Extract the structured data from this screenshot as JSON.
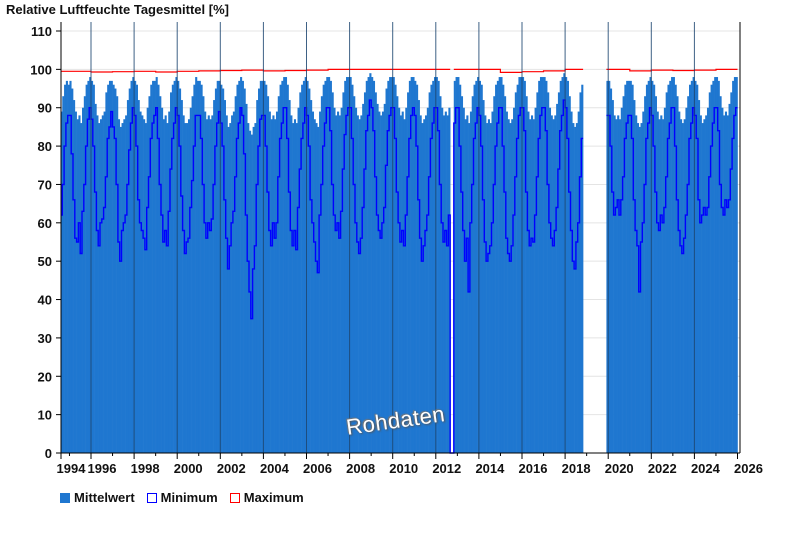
{
  "chart_data": {
    "type": "bar",
    "title": "Relative Luftfeuchte Tagesmittel [%]",
    "xlabel": "",
    "ylabel": "",
    "ylim": [
      0,
      110
    ],
    "yticks": [
      "0",
      "10",
      "20",
      "30",
      "40",
      "50",
      "60",
      "70",
      "80",
      "90",
      "100",
      "110"
    ],
    "xticks": [
      "1994",
      "1996",
      "1998",
      "2000",
      "2002",
      "2004",
      "2006",
      "2008",
      "2010",
      "2012",
      "2014",
      "2016",
      "2018",
      "2020",
      "2022",
      "2024",
      "2026"
    ],
    "xlim": [
      1994.6,
      2026.1
    ],
    "grid": "horizontal",
    "legend_position": "bottom-left",
    "watermark": "Rohdaten",
    "legend": [
      {
        "name": "Mittelwert",
        "color": "#1f77d0",
        "style": "fill"
      },
      {
        "name": "Minimum",
        "color": "#0000ff",
        "style": "outline"
      },
      {
        "name": "Maximum",
        "color": "#ff0000",
        "style": "outline"
      }
    ],
    "resolution": "monthly",
    "start": "1994-08",
    "mean": [
      [
        89,
        93,
        96,
        97,
        96
      ],
      [
        97,
        95,
        92,
        89,
        87,
        88,
        86,
        90,
        93,
        96,
        97,
        98
      ],
      [
        97,
        96,
        91,
        88,
        86,
        87,
        88,
        89,
        94,
        96,
        97,
        97
      ],
      [
        96,
        95,
        93,
        87,
        85,
        86,
        87,
        88,
        92,
        95,
        97,
        98
      ],
      [
        97,
        96,
        92,
        89,
        88,
        87,
        86,
        90,
        93,
        96,
        97,
        97
      ],
      [
        98,
        96,
        93,
        90,
        87,
        88,
        86,
        89,
        94,
        96,
        97,
        98
      ],
      [
        97,
        95,
        92,
        88,
        86,
        86,
        87,
        90,
        93,
        96,
        98,
        97
      ],
      [
        97,
        96,
        93,
        89,
        87,
        88,
        87,
        88,
        92,
        95,
        97,
        97
      ],
      [
        96,
        95,
        92,
        88,
        85,
        86,
        88,
        89,
        93,
        96,
        97,
        98
      ],
      [
        97,
        95,
        91,
        86,
        84,
        83,
        85,
        86,
        92,
        95,
        97,
        97
      ],
      [
        97,
        96,
        93,
        89,
        87,
        88,
        87,
        89,
        93,
        96,
        97,
        98
      ],
      [
        98,
        96,
        92,
        88,
        86,
        87,
        86,
        90,
        94,
        96,
        97,
        98
      ],
      [
        97,
        95,
        92,
        89,
        87,
        86,
        85,
        89,
        93,
        96,
        97,
        98
      ],
      [
        98,
        97,
        94,
        90,
        88,
        89,
        88,
        90,
        94,
        97,
        98,
        98
      ],
      [
        98,
        96,
        93,
        90,
        88,
        87,
        88,
        91,
        94,
        97,
        98,
        99
      ],
      [
        98,
        97,
        94,
        91,
        89,
        88,
        89,
        91,
        95,
        97,
        98,
        98
      ],
      [
        98,
        96,
        93,
        90,
        88,
        89,
        87,
        90,
        94,
        97,
        98,
        98
      ],
      [
        97,
        96,
        92,
        88,
        86,
        87,
        88,
        90,
        94,
        96,
        97,
        98
      ],
      [
        98,
        97,
        93,
        90,
        88,
        89,
        88,
        90,
        null,
        null,
        97,
        98
      ],
      [
        98,
        96,
        93,
        90,
        87,
        88,
        86,
        89,
        93,
        96,
        97,
        98
      ],
      [
        97,
        96,
        92,
        88,
        86,
        87,
        86,
        89,
        93,
        96,
        97,
        98
      ],
      [
        98,
        96,
        93,
        89,
        87,
        86,
        87,
        90,
        94,
        96,
        98,
        98
      ],
      [
        98,
        97,
        93,
        89,
        87,
        88,
        87,
        90,
        94,
        97,
        98,
        98
      ],
      [
        98,
        97,
        94,
        90,
        88,
        87,
        88,
        91,
        94,
        97,
        98,
        99
      ],
      [
        98,
        97,
        93,
        89,
        86,
        85,
        86,
        89,
        94,
        96,
        null,
        null
      ],
      [
        null,
        null,
        null,
        null,
        null,
        null,
        null,
        null,
        null,
        null,
        null,
        97
      ],
      [
        97,
        95,
        92,
        88,
        87,
        88,
        87,
        90,
        93,
        96,
        97,
        97
      ],
      [
        97,
        96,
        92,
        88,
        86,
        85,
        86,
        89,
        93,
        96,
        97,
        98
      ],
      [
        97,
        96,
        93,
        89,
        87,
        88,
        87,
        90,
        94,
        96,
        97,
        98
      ],
      [
        98,
        96,
        93,
        89,
        87,
        86,
        87,
        90,
        93,
        96,
        97,
        98
      ],
      [
        97,
        96,
        92,
        88,
        86,
        87,
        88,
        90,
        94,
        96,
        97,
        98
      ],
      [
        98,
        97,
        93,
        90,
        88,
        89,
        88,
        91,
        94,
        97,
        98,
        98
      ]
    ],
    "minimum": [
      [
        62,
        70,
        80,
        86,
        88
      ],
      [
        88,
        78,
        66,
        56,
        55,
        60,
        52,
        63,
        70,
        80,
        87,
        90
      ],
      [
        87,
        80,
        68,
        58,
        54,
        60,
        61,
        64,
        72,
        82,
        85,
        89
      ],
      [
        85,
        82,
        70,
        55,
        50,
        58,
        60,
        62,
        70,
        79,
        86,
        90
      ],
      [
        88,
        80,
        66,
        60,
        58,
        56,
        53,
        64,
        72,
        82,
        86,
        88
      ],
      [
        90,
        82,
        70,
        62,
        55,
        58,
        54,
        63,
        74,
        82,
        86,
        90
      ],
      [
        88,
        80,
        67,
        58,
        52,
        55,
        56,
        64,
        71,
        80,
        88,
        88
      ],
      [
        88,
        82,
        70,
        60,
        56,
        60,
        58,
        61,
        70,
        80,
        86,
        89
      ],
      [
        86,
        80,
        66,
        56,
        48,
        54,
        60,
        63,
        72,
        82,
        86,
        90
      ],
      [
        88,
        78,
        62,
        50,
        42,
        35,
        48,
        54,
        70,
        80,
        87,
        88
      ],
      [
        88,
        80,
        68,
        58,
        54,
        60,
        56,
        60,
        72,
        82,
        86,
        90
      ],
      [
        90,
        82,
        68,
        58,
        54,
        58,
        53,
        64,
        74,
        82,
        86,
        90
      ],
      [
        88,
        80,
        66,
        60,
        55,
        50,
        47,
        62,
        70,
        80,
        86,
        90
      ],
      [
        90,
        84,
        70,
        62,
        58,
        60,
        56,
        63,
        74,
        83,
        88,
        90
      ],
      [
        90,
        82,
        70,
        60,
        55,
        52,
        56,
        64,
        74,
        84,
        88,
        92
      ],
      [
        90,
        84,
        72,
        62,
        58,
        56,
        60,
        64,
        75,
        84,
        88,
        90
      ],
      [
        90,
        82,
        68,
        60,
        55,
        58,
        54,
        62,
        72,
        82,
        88,
        90
      ],
      [
        88,
        80,
        66,
        56,
        50,
        54,
        58,
        62,
        72,
        82,
        86,
        90
      ],
      [
        90,
        84,
        70,
        60,
        55,
        58,
        54,
        62,
        0,
        0,
        86,
        90
      ],
      [
        90,
        80,
        68,
        58,
        50,
        56,
        42,
        60,
        70,
        82,
        86,
        90
      ],
      [
        88,
        80,
        66,
        55,
        50,
        52,
        54,
        60,
        70,
        80,
        86,
        90
      ],
      [
        90,
        80,
        68,
        56,
        52,
        50,
        54,
        62,
        72,
        82,
        88,
        90
      ],
      [
        90,
        84,
        68,
        58,
        54,
        56,
        55,
        62,
        72,
        82,
        88,
        90
      ],
      [
        90,
        84,
        70,
        60,
        56,
        54,
        58,
        64,
        74,
        84,
        88,
        92
      ],
      [
        90,
        82,
        68,
        58,
        50,
        48,
        55,
        60,
        72,
        82,
        null,
        null
      ],
      [
        null,
        null,
        null,
        null,
        null,
        null,
        null,
        null,
        null,
        null,
        null,
        88
      ],
      [
        88,
        80,
        68,
        62,
        64,
        66,
        62,
        66,
        72,
        82,
        86,
        88
      ],
      [
        88,
        82,
        66,
        58,
        54,
        42,
        55,
        60,
        70,
        82,
        86,
        90
      ],
      [
        88,
        80,
        68,
        60,
        58,
        62,
        60,
        64,
        72,
        82,
        86,
        90
      ],
      [
        90,
        80,
        66,
        58,
        54,
        52,
        56,
        62,
        70,
        82,
        86,
        90
      ],
      [
        88,
        82,
        66,
        60,
        62,
        64,
        62,
        64,
        72,
        80,
        86,
        90
      ],
      [
        90,
        84,
        70,
        64,
        62,
        66,
        64,
        66,
        74,
        82,
        88,
        90
      ]
    ],
    "maximum_by_year": [
      99.5,
      99.5,
      99.3,
      99.4,
      99.5,
      99.3,
      99.5,
      99.6,
      99.7,
      99.8,
      99.6,
      99.7,
      99.8,
      100,
      100,
      100,
      100,
      100,
      100,
      100,
      100,
      99.2,
      99.4,
      99.6,
      100,
      100,
      100,
      99.6,
      99.8,
      99.7,
      99.8,
      100
    ]
  }
}
